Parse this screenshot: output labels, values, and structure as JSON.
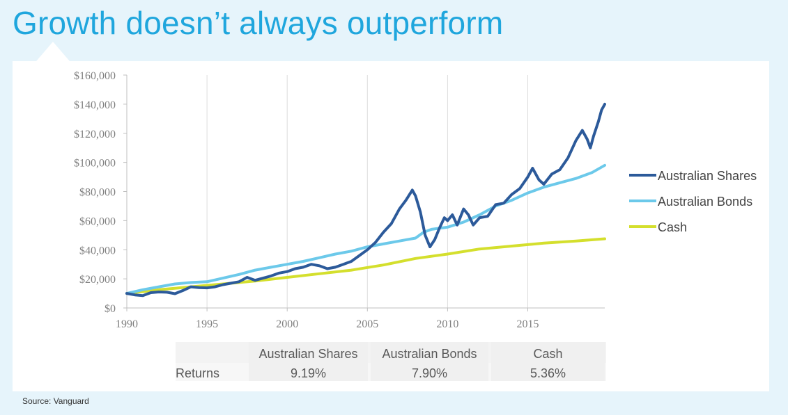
{
  "title": "Growth doesn’t always outperform",
  "source": "Source: Vanguard",
  "colors": {
    "title": "#1fa6dd",
    "shares": "#2c5a9a",
    "bonds": "#6cc9ea",
    "cash": "#d4df2d",
    "background": "#e6f4fb"
  },
  "chart_data": {
    "type": "line",
    "xlim": [
      1990,
      2019.8
    ],
    "ylim": [
      0,
      160000
    ],
    "x_ticks": [
      "1990",
      "1995",
      "2000",
      "2005",
      "2010",
      "2015"
    ],
    "y_ticks": [
      "$0",
      "$20,000",
      "$40,000",
      "$60,000",
      "$80,000",
      "$100,000",
      "$120,000",
      "$140,000",
      "$160,000"
    ],
    "grid": "vertical",
    "legend_position": "right",
    "series": [
      {
        "name": "Australian Shares",
        "color": "#2c5a9a",
        "points": [
          [
            1990,
            10000
          ],
          [
            1990.5,
            9000
          ],
          [
            1991,
            8500
          ],
          [
            1991.5,
            10500
          ],
          [
            1992,
            11000
          ],
          [
            1992.5,
            10800
          ],
          [
            1993,
            9800
          ],
          [
            1993.5,
            12000
          ],
          [
            1994,
            14500
          ],
          [
            1994.5,
            14000
          ],
          [
            1995,
            13800
          ],
          [
            1995.5,
            14500
          ],
          [
            1996,
            16000
          ],
          [
            1996.5,
            17000
          ],
          [
            1997,
            18000
          ],
          [
            1997.5,
            21000
          ],
          [
            1998,
            19000
          ],
          [
            1998.5,
            20500
          ],
          [
            1999,
            22000
          ],
          [
            1999.5,
            24000
          ],
          [
            2000,
            25000
          ],
          [
            2000.5,
            27000
          ],
          [
            2001,
            28000
          ],
          [
            2001.5,
            30000
          ],
          [
            2002,
            29000
          ],
          [
            2002.5,
            27000
          ],
          [
            2003,
            28000
          ],
          [
            2003.5,
            30000
          ],
          [
            2004,
            32000
          ],
          [
            2004.5,
            36000
          ],
          [
            2005,
            40000
          ],
          [
            2005.5,
            45000
          ],
          [
            2006,
            52000
          ],
          [
            2006.5,
            58000
          ],
          [
            2007,
            68000
          ],
          [
            2007.4,
            74000
          ],
          [
            2007.8,
            81000
          ],
          [
            2008,
            77000
          ],
          [
            2008.3,
            66000
          ],
          [
            2008.6,
            50000
          ],
          [
            2008.9,
            42000
          ],
          [
            2009.2,
            47000
          ],
          [
            2009.5,
            55000
          ],
          [
            2009.8,
            62000
          ],
          [
            2010,
            60000
          ],
          [
            2010.3,
            64000
          ],
          [
            2010.6,
            57000
          ],
          [
            2011,
            68000
          ],
          [
            2011.3,
            64000
          ],
          [
            2011.6,
            57000
          ],
          [
            2012,
            62000
          ],
          [
            2012.5,
            63000
          ],
          [
            2013,
            71000
          ],
          [
            2013.5,
            72000
          ],
          [
            2014,
            78000
          ],
          [
            2014.5,
            82000
          ],
          [
            2015,
            90000
          ],
          [
            2015.3,
            96000
          ],
          [
            2015.7,
            88000
          ],
          [
            2016,
            85000
          ],
          [
            2016.5,
            92000
          ],
          [
            2017,
            95000
          ],
          [
            2017.5,
            103000
          ],
          [
            2018,
            115000
          ],
          [
            2018.4,
            122000
          ],
          [
            2018.7,
            116000
          ],
          [
            2018.9,
            110000
          ],
          [
            2019.1,
            118000
          ],
          [
            2019.4,
            128000
          ],
          [
            2019.6,
            136000
          ],
          [
            2019.8,
            140000
          ]
        ]
      },
      {
        "name": "Australian Bonds",
        "color": "#6cc9ea",
        "points": [
          [
            1990,
            10000
          ],
          [
            1991,
            12500
          ],
          [
            1992,
            14500
          ],
          [
            1993,
            16500
          ],
          [
            1994,
            17500
          ],
          [
            1995,
            18000
          ],
          [
            1996,
            20500
          ],
          [
            1997,
            23000
          ],
          [
            1998,
            26000
          ],
          [
            1999,
            28000
          ],
          [
            2000,
            30000
          ],
          [
            2001,
            32000
          ],
          [
            2002,
            34500
          ],
          [
            2003,
            37000
          ],
          [
            2004,
            39000
          ],
          [
            2005,
            42000
          ],
          [
            2006,
            44000
          ],
          [
            2007,
            46000
          ],
          [
            2008,
            48000
          ],
          [
            2008.5,
            52000
          ],
          [
            2009,
            54000
          ],
          [
            2010,
            55500
          ],
          [
            2011,
            59000
          ],
          [
            2012,
            64000
          ],
          [
            2013,
            70000
          ],
          [
            2014,
            74000
          ],
          [
            2015,
            79000
          ],
          [
            2016,
            83000
          ],
          [
            2017,
            86000
          ],
          [
            2018,
            89000
          ],
          [
            2019,
            93000
          ],
          [
            2019.8,
            98000
          ]
        ]
      },
      {
        "name": "Cash",
        "color": "#d4df2d",
        "points": [
          [
            1990,
            10000
          ],
          [
            1992,
            12500
          ],
          [
            1994,
            14500
          ],
          [
            1996,
            16500
          ],
          [
            1998,
            18500
          ],
          [
            2000,
            21000
          ],
          [
            2002,
            23500
          ],
          [
            2004,
            26000
          ],
          [
            2006,
            29500
          ],
          [
            2008,
            34000
          ],
          [
            2010,
            37000
          ],
          [
            2012,
            40500
          ],
          [
            2014,
            42500
          ],
          [
            2016,
            44500
          ],
          [
            2018,
            46000
          ],
          [
            2019.8,
            47500
          ]
        ]
      }
    ]
  },
  "returns_table": {
    "row_label": "Returns",
    "columns": [
      {
        "header": "Australian Shares",
        "value": "9.19%"
      },
      {
        "header": "Australian Bonds",
        "value": "7.90%"
      },
      {
        "header": "Cash",
        "value": "5.36%"
      }
    ]
  }
}
